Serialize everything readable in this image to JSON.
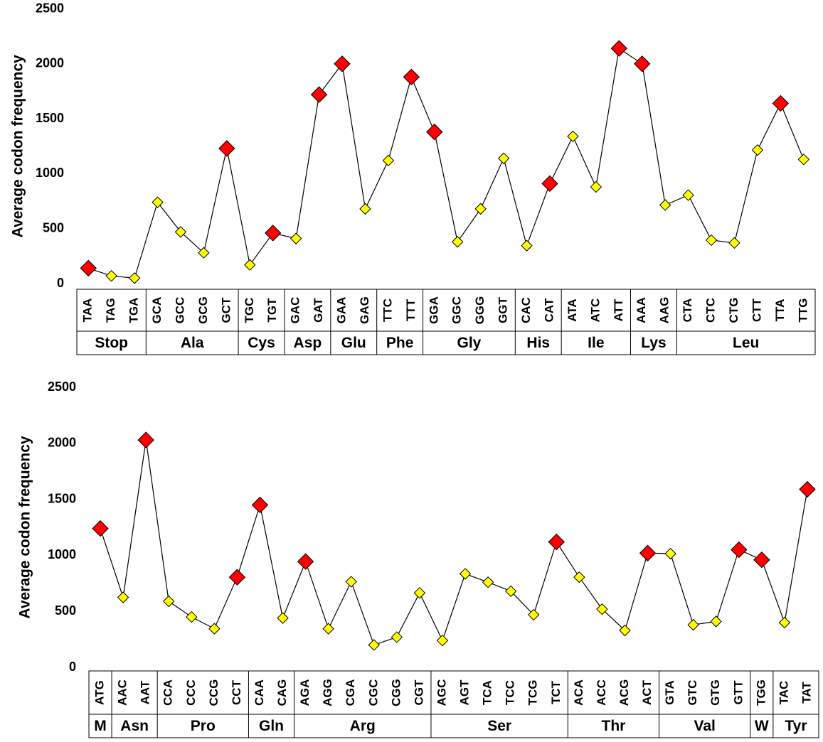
{
  "chart_data": [
    {
      "type": "line",
      "ylabel": "Average codon frequency",
      "ylim": [
        0,
        2500
      ],
      "yticks": [
        0,
        500,
        1000,
        1500,
        2000,
        2500
      ],
      "grid": false,
      "colors": {
        "preferred": "#ff0000",
        "other": "#ffff00",
        "line": "#000000"
      },
      "groups": [
        {
          "label": "Stop",
          "codons": [
            "TAA",
            "TAG",
            "TGA"
          ]
        },
        {
          "label": "Ala",
          "codons": [
            "GCA",
            "GCC",
            "GCG",
            "GCT"
          ]
        },
        {
          "label": "Cys",
          "codons": [
            "TGC",
            "TGT"
          ]
        },
        {
          "label": "Asp",
          "codons": [
            "GAC",
            "GAT"
          ]
        },
        {
          "label": "Glu",
          "codons": [
            "GAA",
            "GAG"
          ]
        },
        {
          "label": "Phe",
          "codons": [
            "TTC",
            "TTT"
          ]
        },
        {
          "label": "Gly",
          "codons": [
            "GGA",
            "GGC",
            "GGG",
            "GGT"
          ]
        },
        {
          "label": "His",
          "codons": [
            "CAC",
            "CAT"
          ]
        },
        {
          "label": "Ile",
          "codons": [
            "ATA",
            "ATC",
            "ATT"
          ]
        },
        {
          "label": "Lys",
          "codons": [
            "AAA",
            "AAG"
          ]
        },
        {
          "label": "Leu",
          "codons": [
            "CTA",
            "CTC",
            "CTG",
            "CTT",
            "TTA",
            "TTG"
          ]
        }
      ],
      "values": [
        140,
        70,
        50,
        740,
        470,
        280,
        1230,
        170,
        460,
        410,
        1720,
        2000,
        680,
        1120,
        1880,
        1380,
        380,
        680,
        1140,
        345,
        910,
        1340,
        880,
        2140,
        2000,
        715,
        805,
        395,
        370,
        1215,
        1640,
        1130
      ],
      "preferred": [
        true,
        false,
        false,
        false,
        false,
        false,
        true,
        false,
        true,
        false,
        true,
        true,
        false,
        false,
        true,
        true,
        false,
        false,
        false,
        false,
        true,
        false,
        false,
        true,
        true,
        false,
        false,
        false,
        false,
        false,
        true,
        false
      ]
    },
    {
      "type": "line",
      "ylabel": "Average codon frequency",
      "ylim": [
        0,
        2500
      ],
      "yticks": [
        0,
        500,
        1000,
        1500,
        2000,
        2500
      ],
      "grid": false,
      "colors": {
        "preferred": "#ff0000",
        "other": "#ffff00",
        "line": "#000000"
      },
      "groups": [
        {
          "label": "M",
          "codons": [
            "ATG"
          ]
        },
        {
          "label": "Asn",
          "codons": [
            "AAC",
            "AAT"
          ]
        },
        {
          "label": "Pro",
          "codons": [
            "CCA",
            "CCC",
            "CCG",
            "CCT"
          ]
        },
        {
          "label": "Gln",
          "codons": [
            "CAA",
            "CAG"
          ]
        },
        {
          "label": "Arg",
          "codons": [
            "AGA",
            "AGG",
            "CGA",
            "CGC",
            "CGG",
            "CGT"
          ]
        },
        {
          "label": "Ser",
          "codons": [
            "AGC",
            "AGT",
            "TCA",
            "TCC",
            "TCG",
            "TCT"
          ]
        },
        {
          "label": "Thr",
          "codons": [
            "ACA",
            "ACC",
            "ACG",
            "ACT"
          ]
        },
        {
          "label": "Val",
          "codons": [
            "GTA",
            "GTC",
            "GTG",
            "GTT"
          ]
        },
        {
          "label": "W",
          "codons": [
            "TGG"
          ]
        },
        {
          "label": "Tyr",
          "codons": [
            "TAC",
            "TAT"
          ]
        }
      ],
      "values": [
        1240,
        625,
        2030,
        590,
        450,
        345,
        805,
        1450,
        440,
        945,
        345,
        765,
        200,
        270,
        665,
        240,
        835,
        760,
        680,
        470,
        1120,
        805,
        520,
        330,
        1020,
        1015,
        380,
        410,
        1050,
        960,
        400,
        1590
      ],
      "preferred": [
        true,
        false,
        true,
        false,
        false,
        false,
        true,
        true,
        false,
        true,
        false,
        false,
        false,
        false,
        false,
        false,
        false,
        false,
        false,
        false,
        true,
        false,
        false,
        false,
        true,
        false,
        false,
        false,
        true,
        true,
        false,
        true
      ]
    }
  ]
}
